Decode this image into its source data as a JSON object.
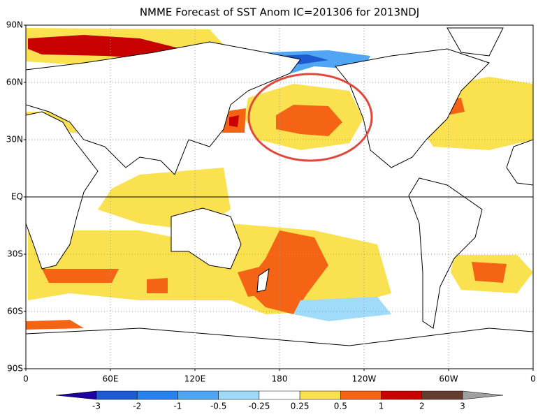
{
  "title": "NMME Forecast of SST Anom  IC=201306 for 2013NDJ",
  "lat_labels": [
    "90N",
    "60N",
    "30N",
    "EQ",
    "30S",
    "60S",
    "90S"
  ],
  "lon_labels": [
    "0",
    "60E",
    "120E",
    "180",
    "120W",
    "60W",
    "0"
  ],
  "colorbar": {
    "levels": [
      -3,
      -2,
      -1,
      -0.5,
      -0.25,
      0.25,
      0.5,
      1,
      2,
      3
    ],
    "colors": [
      "#1e00a0",
      "#1e5ad2",
      "#2882f0",
      "#50a5f5",
      "#a0dcfa",
      "#ffffff",
      "#fae150",
      "#f56414",
      "#c80000",
      "#643c32",
      "#a0a0a0"
    ]
  }
}
